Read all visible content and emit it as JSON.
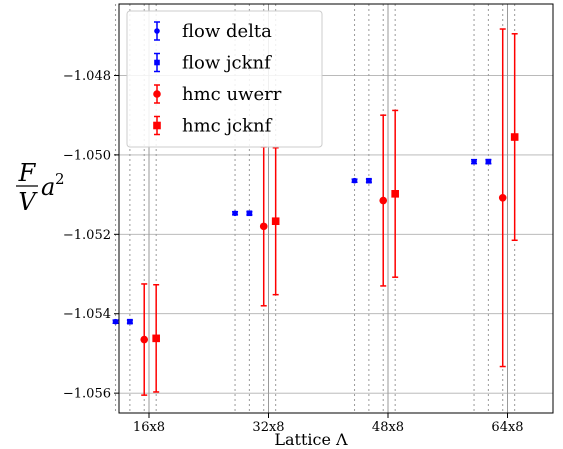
{
  "chart_data": {
    "type": "scatter",
    "xlabel": "Lattice Λ",
    "ylabel_parts": {
      "numerator": "F",
      "denominator": "V",
      "suffix": "a",
      "exponent": "2"
    },
    "categories": [
      "16x8",
      "32x8",
      "48x8",
      "64x8"
    ],
    "ylim": [
      -1.0565,
      -1.0462
    ],
    "yticks": [
      -1.056,
      -1.054,
      -1.052,
      -1.05,
      -1.048
    ],
    "ytick_labels": [
      "−1.056",
      "−1.054",
      "−1.052",
      "−1.050",
      "−1.048"
    ],
    "grid": true,
    "legend_position": "upper-left",
    "series": [
      {
        "name": "flow delta",
        "marker": "circle",
        "color": "#0000ff",
        "offset": -0.28,
        "values": [
          -1.0542,
          -1.05147,
          -1.05065,
          -1.05017
        ],
        "errors": [
          4e-05,
          4e-05,
          4e-05,
          5e-05
        ]
      },
      {
        "name": "flow jcknf",
        "marker": "square",
        "color": "#0000ff",
        "offset": -0.16,
        "values": [
          -1.0542,
          -1.05147,
          -1.05065,
          -1.05017
        ],
        "errors": [
          4e-05,
          4e-05,
          4e-05,
          5e-05
        ]
      },
      {
        "name": "hmc uwerr",
        "marker": "circle",
        "color": "#ff0000",
        "offset": -0.04,
        "values": [
          -1.05465,
          -1.0518,
          -1.05115,
          -1.05108
        ],
        "errors": [
          0.0014,
          0.002,
          0.00215,
          0.00425
        ]
      },
      {
        "name": "hmc jcknf",
        "marker": "square",
        "color": "#ff0000",
        "offset": 0.06,
        "values": [
          -1.05462,
          -1.05167,
          -1.05098,
          -1.04955
        ],
        "errors": [
          0.00135,
          0.00185,
          0.0021,
          0.0026
        ]
      }
    ]
  }
}
